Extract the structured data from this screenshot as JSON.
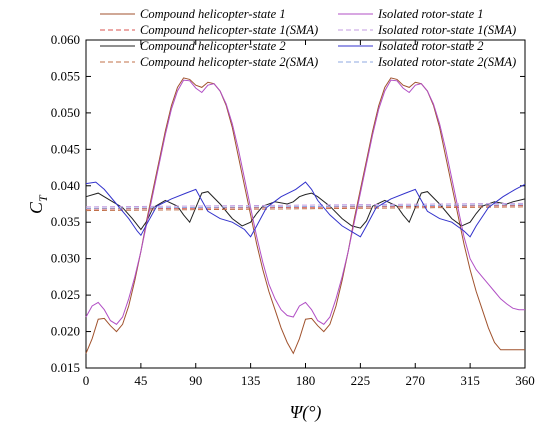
{
  "chart_data": {
    "type": "line",
    "xlabel": "Ψ(°)",
    "ylabel": "C",
    "ylabel_sub": "T",
    "xlim": [
      0,
      360
    ],
    "ylim": [
      0.015,
      0.06
    ],
    "xticks": [
      "0",
      "45",
      "90",
      "135",
      "180",
      "225",
      "270",
      "315",
      "360"
    ],
    "yticks": [
      "0.015",
      "0.020",
      "0.025",
      "0.030",
      "0.035",
      "0.040",
      "0.045",
      "0.050",
      "0.055",
      "0.060"
    ],
    "legend_placement": "top",
    "grid": false,
    "series": [
      {
        "name": "Compound helicopter-state 1",
        "color": "#a0522d",
        "dash": "solid",
        "x": [
          0,
          5,
          10,
          15,
          20,
          25,
          30,
          35,
          40,
          45,
          50,
          55,
          60,
          65,
          70,
          75,
          80,
          85,
          90,
          95,
          100,
          105,
          110,
          115,
          120,
          125,
          130,
          135,
          140,
          145,
          150,
          155,
          160,
          165,
          170,
          175,
          180,
          185,
          190,
          195,
          200,
          205,
          210,
          215,
          220,
          225,
          230,
          235,
          240,
          245,
          250,
          255,
          260,
          265,
          270,
          275,
          280,
          285,
          290,
          295,
          300,
          305,
          310,
          315,
          320,
          325,
          330,
          335,
          340,
          345,
          350,
          355,
          360
        ],
        "y": [
          0.017,
          0.019,
          0.0217,
          0.0218,
          0.0208,
          0.02,
          0.021,
          0.0235,
          0.027,
          0.031,
          0.0355,
          0.0395,
          0.0435,
          0.0475,
          0.051,
          0.0535,
          0.0548,
          0.0546,
          0.0538,
          0.0535,
          0.0542,
          0.054,
          0.053,
          0.051,
          0.048,
          0.044,
          0.04,
          0.036,
          0.032,
          0.0285,
          0.0255,
          0.023,
          0.0205,
          0.0185,
          0.017,
          0.019,
          0.0217,
          0.0218,
          0.0208,
          0.02,
          0.021,
          0.0235,
          0.027,
          0.031,
          0.0355,
          0.0395,
          0.0435,
          0.0475,
          0.051,
          0.0535,
          0.0548,
          0.0546,
          0.0538,
          0.0535,
          0.0542,
          0.054,
          0.053,
          0.051,
          0.048,
          0.044,
          0.04,
          0.036,
          0.032,
          0.0285,
          0.0255,
          0.023,
          0.0205,
          0.0185,
          0.0175,
          0.0175,
          0.0175,
          0.0175,
          0.0175
        ]
      },
      {
        "name": "Compound helicopter-state 1(SMA)",
        "color": "#d9534f",
        "dash": "dash",
        "x": [
          0,
          360
        ],
        "y": [
          0.0368,
          0.0373
        ]
      },
      {
        "name": "Compound helicopter-state 2",
        "color": "#222222",
        "dash": "solid",
        "x": [
          0,
          10,
          20,
          30,
          38,
          45,
          50,
          55,
          65,
          75,
          80,
          85,
          90,
          95,
          100,
          110,
          120,
          128,
          135,
          140,
          145,
          155,
          165,
          170,
          175,
          180,
          185,
          190,
          200,
          210,
          218,
          225,
          230,
          235,
          245,
          255,
          260,
          265,
          270,
          275,
          280,
          290,
          300,
          308,
          315,
          320,
          325,
          335,
          345,
          350,
          355,
          360
        ],
        "y": [
          0.0385,
          0.039,
          0.038,
          0.037,
          0.0355,
          0.034,
          0.0352,
          0.037,
          0.038,
          0.0372,
          0.036,
          0.035,
          0.037,
          0.039,
          0.0392,
          0.0375,
          0.0355,
          0.0345,
          0.035,
          0.0362,
          0.0372,
          0.0378,
          0.0375,
          0.0378,
          0.0385,
          0.0388,
          0.039,
          0.0385,
          0.0372,
          0.0355,
          0.0345,
          0.0342,
          0.0352,
          0.0372,
          0.038,
          0.0372,
          0.036,
          0.035,
          0.037,
          0.039,
          0.0392,
          0.0375,
          0.0355,
          0.0345,
          0.035,
          0.0362,
          0.0372,
          0.0378,
          0.0375,
          0.0378,
          0.038,
          0.0382
        ]
      },
      {
        "name": "Compound helicopter-state 2(SMA)",
        "color": "#c0704a",
        "dash": "dash",
        "x": [
          0,
          360
        ],
        "y": [
          0.0366,
          0.0371
        ]
      },
      {
        "name": "Isolated rotor-state 1",
        "color": "#b14fc5",
        "dash": "solid",
        "x": [
          0,
          5,
          10,
          15,
          20,
          25,
          30,
          35,
          40,
          45,
          50,
          55,
          60,
          65,
          70,
          75,
          80,
          85,
          90,
          95,
          100,
          105,
          110,
          115,
          120,
          125,
          130,
          135,
          140,
          145,
          150,
          155,
          160,
          165,
          170,
          175,
          180,
          185,
          190,
          195,
          200,
          205,
          210,
          215,
          220,
          225,
          230,
          235,
          240,
          245,
          250,
          255,
          260,
          265,
          270,
          275,
          280,
          285,
          290,
          295,
          300,
          305,
          310,
          315,
          320,
          325,
          330,
          335,
          340,
          345,
          350,
          355,
          360
        ],
        "y": [
          0.022,
          0.0235,
          0.024,
          0.023,
          0.0215,
          0.021,
          0.022,
          0.0245,
          0.0275,
          0.031,
          0.035,
          0.039,
          0.043,
          0.047,
          0.0505,
          0.053,
          0.0545,
          0.0544,
          0.0534,
          0.0528,
          0.0538,
          0.054,
          0.053,
          0.0512,
          0.0485,
          0.045,
          0.041,
          0.037,
          0.033,
          0.0295,
          0.0265,
          0.0245,
          0.023,
          0.0222,
          0.022,
          0.0235,
          0.024,
          0.023,
          0.0215,
          0.021,
          0.022,
          0.0245,
          0.0275,
          0.031,
          0.035,
          0.039,
          0.043,
          0.047,
          0.0505,
          0.053,
          0.0545,
          0.0544,
          0.0534,
          0.0528,
          0.0538,
          0.054,
          0.053,
          0.0512,
          0.0485,
          0.045,
          0.041,
          0.037,
          0.033,
          0.03,
          0.0285,
          0.0275,
          0.0265,
          0.0255,
          0.0245,
          0.0238,
          0.0232,
          0.023,
          0.023
        ]
      },
      {
        "name": "Isolated rotor-state 1(SMA)",
        "color": "#c39be0",
        "dash": "dash",
        "x": [
          0,
          360
        ],
        "y": [
          0.0371,
          0.0376
        ]
      },
      {
        "name": "Isolated rotor-state 2",
        "color": "#3333cc",
        "dash": "solid",
        "x": [
          0,
          8,
          15,
          25,
          35,
          42,
          45,
          50,
          58,
          70,
          82,
          90,
          95,
          100,
          110,
          120,
          130,
          135,
          140,
          148,
          160,
          172,
          180,
          185,
          190,
          200,
          210,
          220,
          225,
          230,
          238,
          250,
          262,
          270,
          275,
          280,
          290,
          300,
          310,
          315,
          320,
          330,
          342,
          352,
          360
        ],
        "y": [
          0.0403,
          0.0405,
          0.0395,
          0.0375,
          0.0355,
          0.0338,
          0.0332,
          0.0348,
          0.0372,
          0.0382,
          0.039,
          0.0395,
          0.038,
          0.0365,
          0.0355,
          0.035,
          0.034,
          0.033,
          0.0345,
          0.037,
          0.0385,
          0.0395,
          0.0405,
          0.0395,
          0.038,
          0.036,
          0.0345,
          0.0335,
          0.033,
          0.0345,
          0.037,
          0.0382,
          0.039,
          0.0395,
          0.038,
          0.0365,
          0.0355,
          0.035,
          0.0338,
          0.033,
          0.0345,
          0.037,
          0.0385,
          0.0395,
          0.0402
        ]
      },
      {
        "name": "Isolated rotor-state 2(SMA)",
        "color": "#8fa8e0",
        "dash": "dash",
        "x": [
          0,
          360
        ],
        "y": [
          0.0369,
          0.0374
        ]
      }
    ]
  }
}
